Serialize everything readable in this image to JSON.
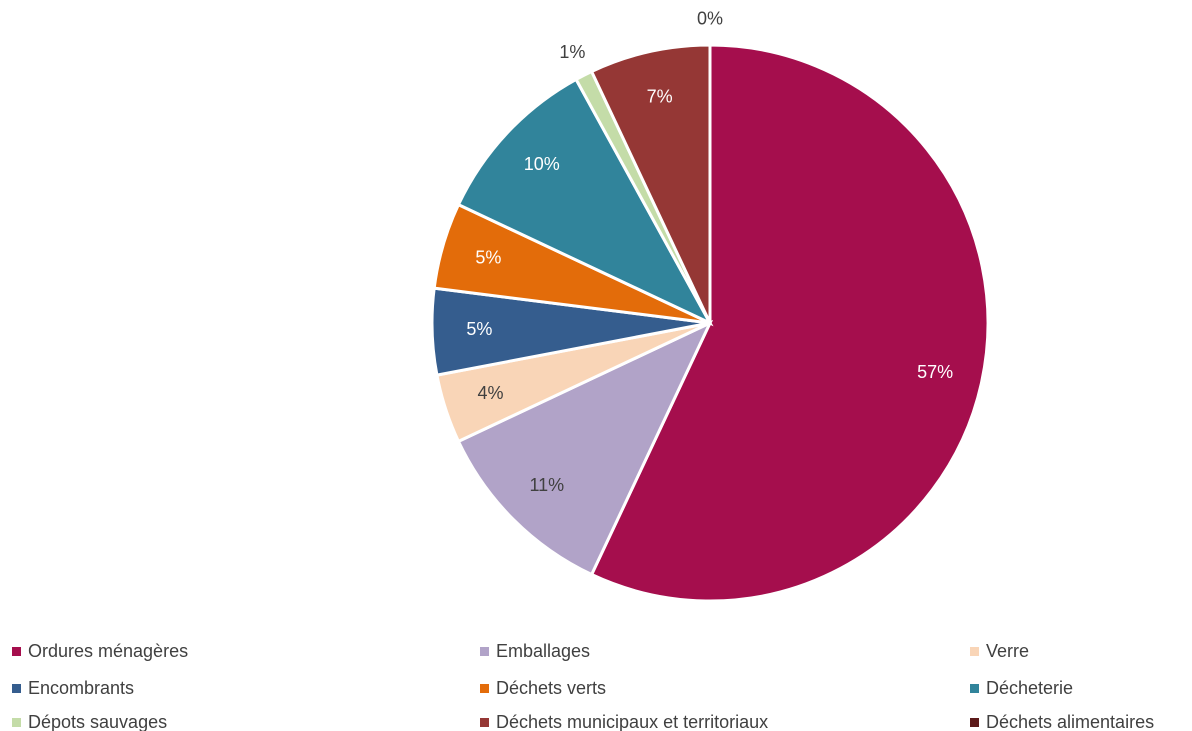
{
  "chart_data": {
    "type": "pie",
    "categories": [
      "Ordures ménagères",
      "Emballages",
      "Verre",
      "Encombrants",
      "Déchets verts",
      "Décheterie",
      "Dépots sauvages",
      "Déchets municipaux et territoriaux",
      "Déchets alimentaires"
    ],
    "values": [
      57,
      11,
      4,
      5,
      5,
      10,
      1,
      7,
      0
    ],
    "value_labels": [
      "57%",
      "11%",
      "4%",
      "5%",
      "5%",
      "10%",
      "1%",
      "7%",
      "0%"
    ],
    "colors": [
      "#a50e4d",
      "#b1a3c8",
      "#f9d5b7",
      "#355d8e",
      "#e36c0a",
      "#31849b",
      "#c4dca8",
      "#953735",
      "#5c1a1a"
    ],
    "legend": "bottom"
  }
}
